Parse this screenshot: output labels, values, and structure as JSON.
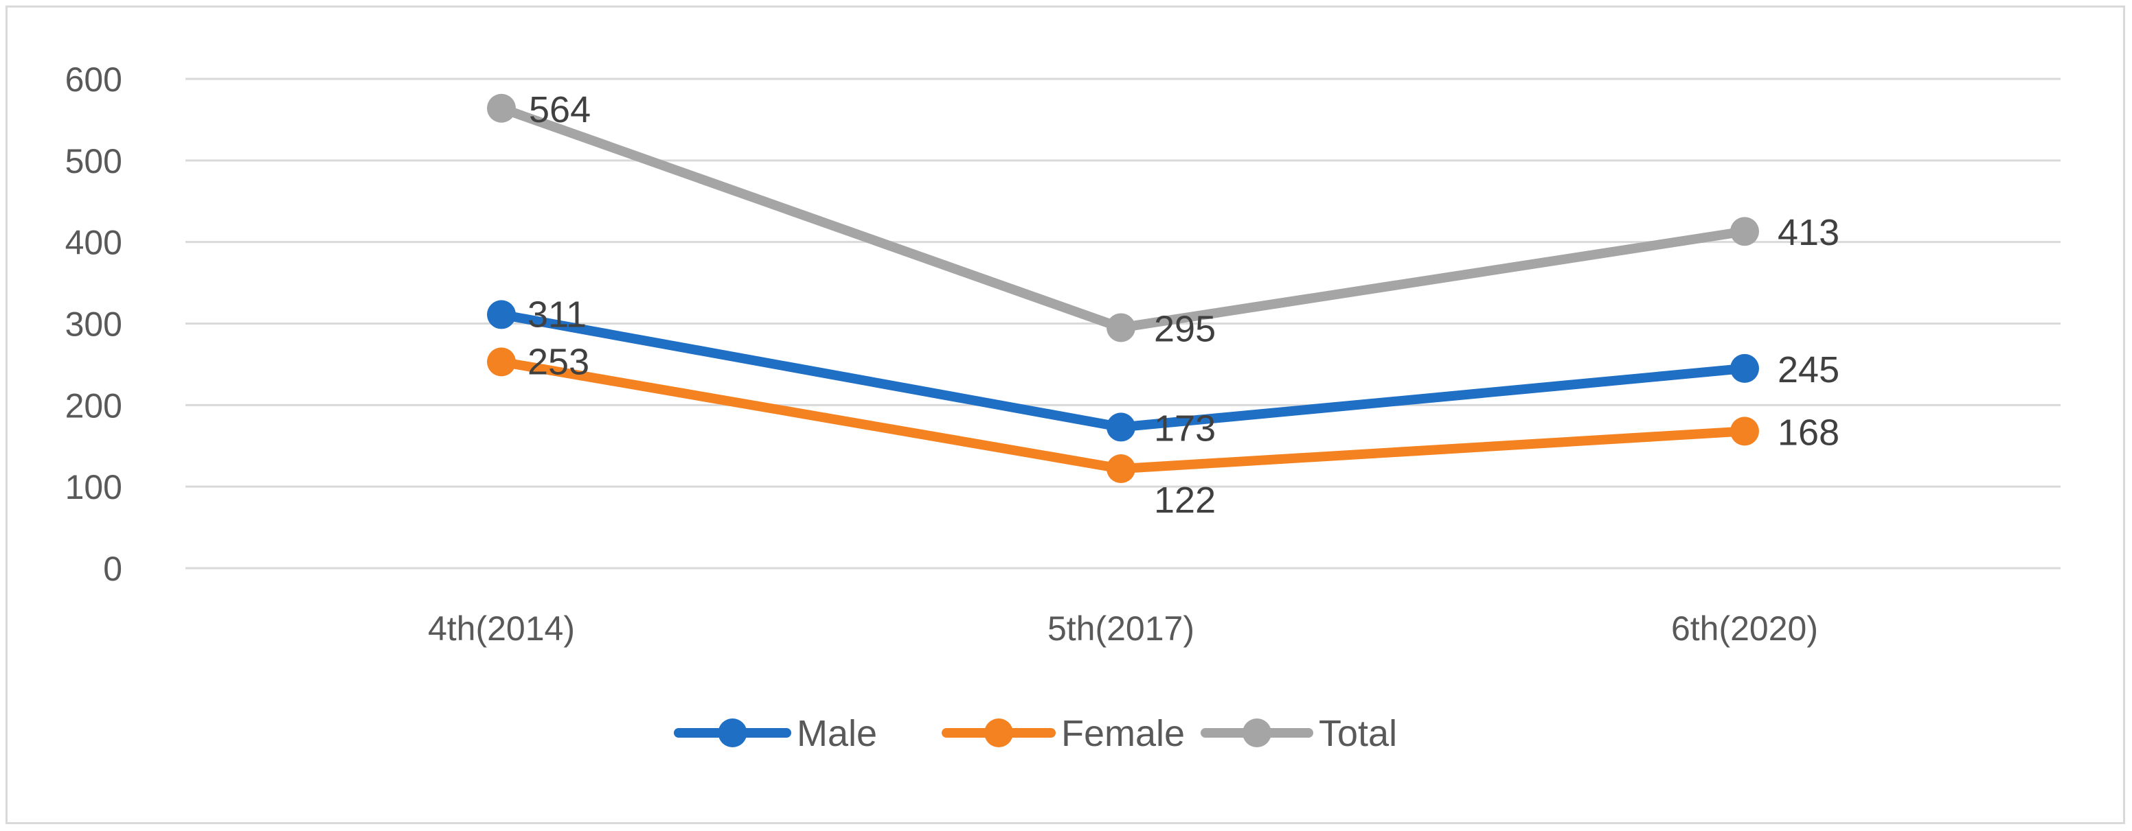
{
  "chart_data": {
    "type": "line",
    "title": "",
    "xlabel": "",
    "ylabel": "",
    "categories": [
      "4th(2014)",
      "5th(2017)",
      "6th(2020)"
    ],
    "ylim": [
      0,
      600
    ],
    "yticks": [
      0,
      100,
      200,
      300,
      400,
      500,
      600
    ],
    "ytick_labels": [
      "0",
      "100",
      "200",
      "300",
      "400",
      "500",
      "600"
    ],
    "grid": true,
    "legend_position": "bottom",
    "series": [
      {
        "name": "Male",
        "color": "#1f6fc5",
        "values": [
          311,
          173,
          245
        ],
        "labels": [
          "311",
          "173",
          "245"
        ]
      },
      {
        "name": "Female",
        "color": "#f58220",
        "values": [
          253,
          122,
          168
        ],
        "labels": [
          "253",
          "122",
          "168"
        ]
      },
      {
        "name": "Total",
        "color": "#a5a5a5",
        "values": [
          564,
          295,
          413
        ],
        "labels": [
          "564",
          "295",
          "413"
        ]
      }
    ]
  }
}
